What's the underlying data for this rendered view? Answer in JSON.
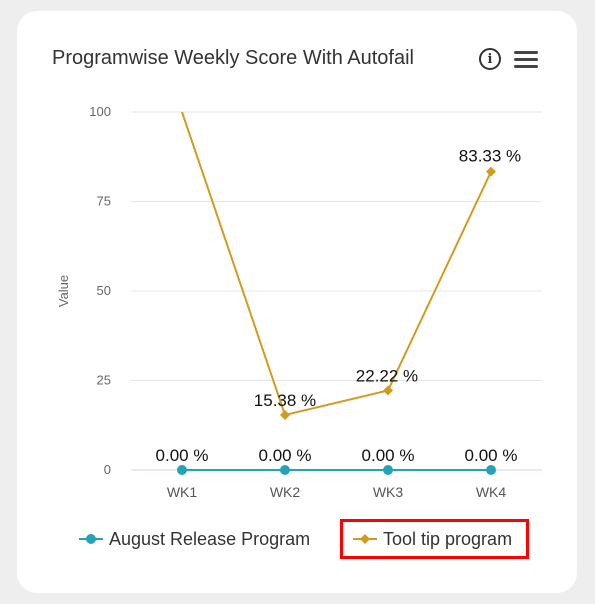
{
  "card": {
    "title": "Programwise Weekly Score With Autofail",
    "info_icon": "info-circle-icon",
    "menu_icon": "hamburger-menu-icon"
  },
  "chart_data": {
    "type": "line",
    "title": "Programwise Weekly Score With Autofail",
    "ylabel": "Value",
    "xlabel": "",
    "categories": [
      "WK1",
      "WK2",
      "WK3",
      "WK4"
    ],
    "y_ticks": [
      0,
      25,
      50,
      75,
      100
    ],
    "ylim": [
      0,
      100
    ],
    "grid": true,
    "legend_position": "bottom",
    "series": [
      {
        "name": "August Release Program",
        "color": "#26a2b8",
        "marker": "circle",
        "values": [
          0,
          0,
          0,
          0
        ],
        "labels": [
          "0.00 %",
          "0.00 %",
          "0.00 %",
          "0.00 %"
        ]
      },
      {
        "name": "Tool tip program",
        "color": "#d09c1d",
        "marker": "diamond",
        "values": [
          100,
          15.38,
          22.22,
          83.33
        ],
        "labels": [
          "",
          "15.38 %",
          "22.22 %",
          "83.33 %"
        ]
      }
    ]
  }
}
